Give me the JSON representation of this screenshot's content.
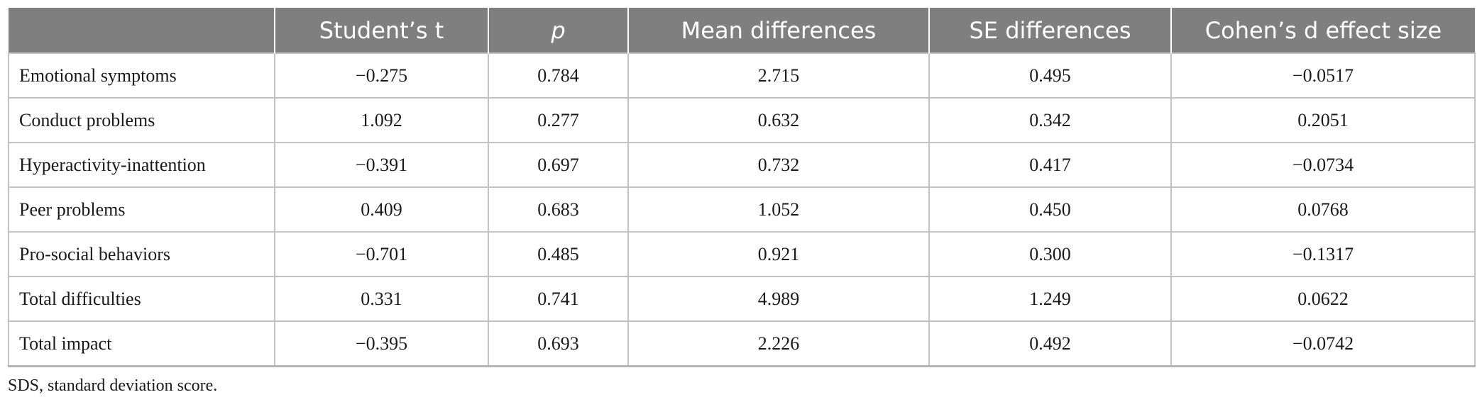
{
  "table": {
    "headers": [
      "",
      "Student’s t",
      "p",
      "Mean differences",
      "SE differences",
      "Cohen’s d effect size"
    ],
    "rows": [
      {
        "label": "Emotional symptoms",
        "t": "−0.275",
        "p": "0.784",
        "mean_diff": "2.715",
        "se_diff": "0.495",
        "cohens_d": "−0.0517"
      },
      {
        "label": "Conduct problems",
        "t": "1.092",
        "p": "0.277",
        "mean_diff": "0.632",
        "se_diff": "0.342",
        "cohens_d": "0.2051"
      },
      {
        "label": "Hyperactivity-inattention",
        "t": "−0.391",
        "p": "0.697",
        "mean_diff": "0.732",
        "se_diff": "0.417",
        "cohens_d": "−0.0734"
      },
      {
        "label": "Peer problems",
        "t": "0.409",
        "p": "0.683",
        "mean_diff": "1.052",
        "se_diff": "0.450",
        "cohens_d": "0.0768"
      },
      {
        "label": "Pro-social behaviors",
        "t": "−0.701",
        "p": "0.485",
        "mean_diff": "0.921",
        "se_diff": "0.300",
        "cohens_d": "−0.1317"
      },
      {
        "label": "Total difficulties",
        "t": "0.331",
        "p": "0.741",
        "mean_diff": "4.989",
        "se_diff": "1.249",
        "cohens_d": "0.0622"
      },
      {
        "label": "Total impact",
        "t": "−0.395",
        "p": "0.693",
        "mean_diff": "2.226",
        "se_diff": "0.492",
        "cohens_d": "−0.0742"
      }
    ]
  },
  "footnote": "SDS, standard deviation score.",
  "colors": {
    "header_bg": "#7f7f7f",
    "header_text": "#ffffff",
    "grid": "#c2c2c2"
  }
}
